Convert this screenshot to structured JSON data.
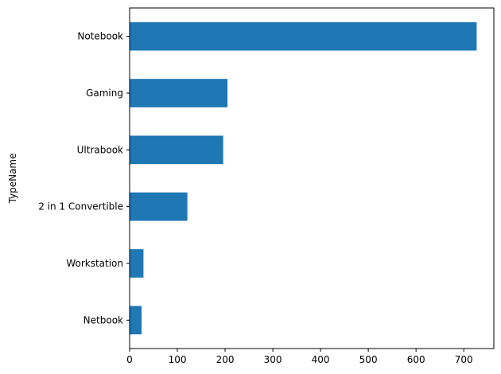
{
  "chart_data": {
    "type": "bar",
    "orientation": "horizontal",
    "categories": [
      "Netbook",
      "Workstation",
      "2 in 1 Convertible",
      "Ultrabook",
      "Gaming",
      "Notebook"
    ],
    "values": [
      25,
      29,
      121,
      196,
      205,
      727
    ],
    "title": "",
    "xlabel": "",
    "ylabel": "TypeName",
    "xlim": [
      0,
      763
    ],
    "xticks": [
      0,
      100,
      200,
      300,
      400,
      500,
      600,
      700
    ],
    "grid": false,
    "legend": "none",
    "bar_color": "#1f77b4"
  }
}
